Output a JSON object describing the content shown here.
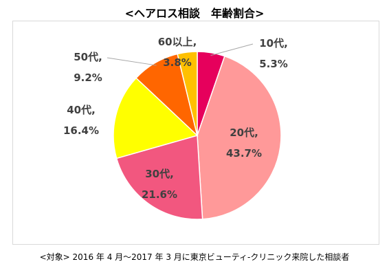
{
  "title": "<ヘアロス相談　年齢割合>",
  "footnote": "<対象> 2016 年 4 月～2017 年 3 月に東京ビューティ-クリニック来院した相談者",
  "chart_data": {
    "type": "pie",
    "title": "<ヘアロス相談　年齢割合>",
    "start": "12 o'clock",
    "direction": "clockwise",
    "slices": [
      {
        "category": "10代",
        "value": 5.3,
        "value_label": "5.3%",
        "color": "#e6005c"
      },
      {
        "category": "20代",
        "value": 43.7,
        "value_label": "43.7%",
        "color": "#ff9999"
      },
      {
        "category": "30代",
        "value": 21.6,
        "value_label": "21.6%",
        "color": "#f2577f"
      },
      {
        "category": "40代",
        "value": 16.4,
        "value_label": "16.4%",
        "color": "#ffff00"
      },
      {
        "category": "50代",
        "value": 9.2,
        "value_label": "9.2%",
        "color": "#ff6600"
      },
      {
        "category": "60以上",
        "value": 3.8,
        "value_label": "3.8%",
        "color": "#ffc000"
      }
    ]
  }
}
